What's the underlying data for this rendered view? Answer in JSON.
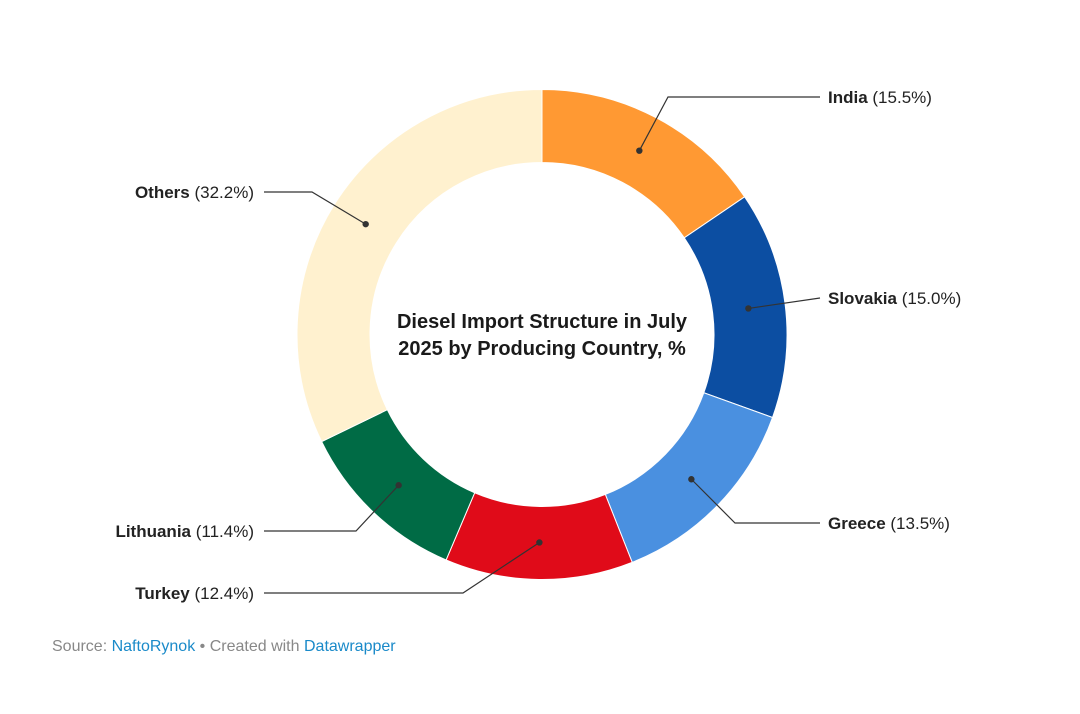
{
  "chart_data": {
    "type": "pie",
    "variant": "donut",
    "title": "Diesel Import Structure in July 2025 by Producing Country, %",
    "title_lines": [
      "Diesel Import Structure in July",
      "2025 by Producing Country, %"
    ],
    "slices": [
      {
        "label": "India",
        "value": 15.5,
        "value_text": "(15.5%)",
        "color": "#ff9933"
      },
      {
        "label": "Slovakia",
        "value": 15.0,
        "value_text": "(15.0%)",
        "color": "#0c4ea2"
      },
      {
        "label": "Greece",
        "value": 13.5,
        "value_text": "(13.5%)",
        "color": "#4a90e0"
      },
      {
        "label": "Turkey",
        "value": 12.4,
        "value_text": "(12.4%)",
        "color": "#e00b19"
      },
      {
        "label": "Lithuania",
        "value": 11.4,
        "value_text": "(11.4%)",
        "color": "#006b45"
      },
      {
        "label": "Others",
        "value": 32.2,
        "value_text": "(32.2%)",
        "color": "#fff1cf"
      }
    ]
  },
  "footer": {
    "source_label": "Source:",
    "source_link": "NaftoRynok",
    "separator": "•",
    "created_label": "Created with",
    "created_link": "Datawrapper"
  }
}
